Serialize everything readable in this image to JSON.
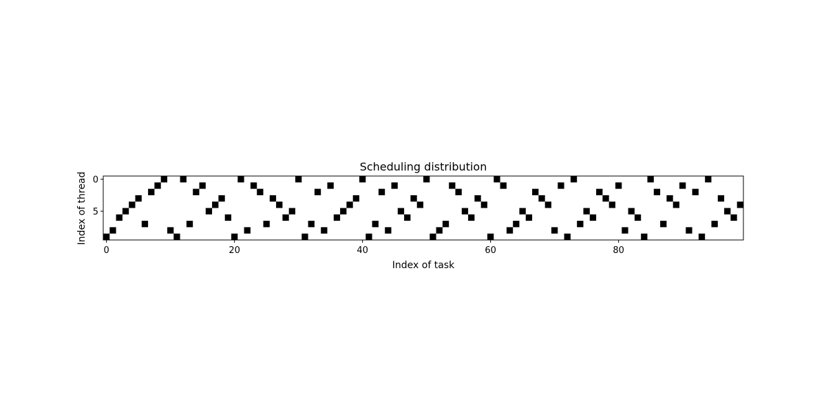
{
  "chart_data": {
    "type": "heatmap",
    "title": "Scheduling distribution",
    "xlabel": "Index of task",
    "ylabel": "Index of thread",
    "xlim": [
      -0.5,
      99.5
    ],
    "ylim": [
      9.5,
      -0.5
    ],
    "x_ticks": [
      0,
      20,
      40,
      60,
      80
    ],
    "y_ticks": [
      0,
      5
    ],
    "grid": false,
    "colors": {
      "filled": "#000000",
      "empty": "#ffffff",
      "frame": "#000000"
    },
    "rows": 10,
    "columns": 100,
    "thread_of_task": [
      9,
      8,
      6,
      5,
      4,
      3,
      7,
      2,
      1,
      0,
      8,
      9,
      0,
      7,
      2,
      1,
      5,
      4,
      3,
      6,
      9,
      0,
      8,
      1,
      2,
      7,
      3,
      4,
      6,
      5,
      0,
      9,
      7,
      2,
      8,
      1,
      6,
      5,
      4,
      3,
      0,
      9,
      7,
      2,
      8,
      1,
      5,
      6,
      3,
      4,
      0,
      9,
      8,
      7,
      1,
      2,
      5,
      6,
      3,
      4,
      9,
      0,
      1,
      8,
      7,
      5,
      6,
      2,
      3,
      4,
      8,
      1,
      9,
      0,
      7,
      5,
      6,
      2,
      3,
      4,
      1,
      8,
      5,
      6,
      9,
      0,
      2,
      7,
      3,
      4,
      1,
      8,
      2,
      9,
      0,
      7,
      3,
      5,
      6,
      4
    ]
  }
}
